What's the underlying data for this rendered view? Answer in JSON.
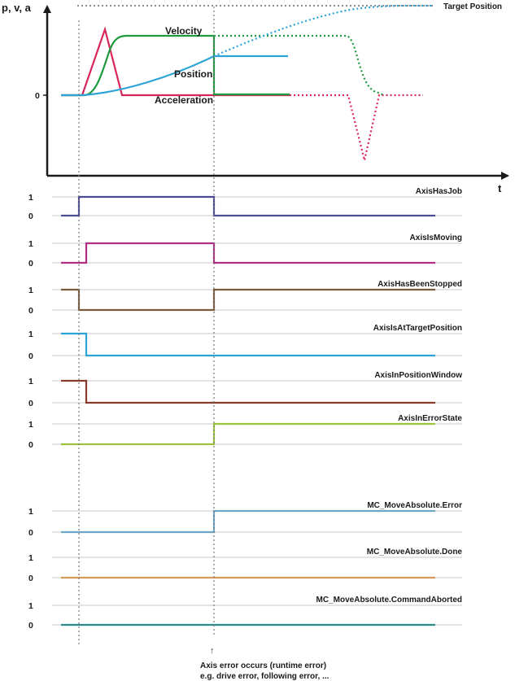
{
  "top_chart": {
    "y_axis_label": "p, v, a",
    "x_axis_label": "t",
    "zero_label": "0",
    "target_label": "Target Position",
    "curves": [
      {
        "name": "Velocity",
        "color": "#1e9a3e"
      },
      {
        "name": "Position",
        "color": "#2ba3d6"
      },
      {
        "name": "Acceleration",
        "color": "#d8265a"
      }
    ]
  },
  "signals": [
    {
      "name": "AxisHasJob",
      "color": "#4b4b96",
      "high": "1",
      "low": "0",
      "levels": [
        0,
        1,
        0
      ]
    },
    {
      "name": "AxisIsMoving",
      "color": "#b02f83",
      "high": "1",
      "low": "0",
      "levels": [
        0,
        1,
        0
      ]
    },
    {
      "name": "AxisHasBeenStopped",
      "color": "#7a5a3c",
      "high": "1",
      "low": "0",
      "levels": [
        1,
        0,
        1
      ]
    },
    {
      "name": "AxisIsAtTargetPosition",
      "color": "#2ba3d6",
      "high": "1",
      "low": "0",
      "levels": [
        1,
        0,
        0
      ]
    },
    {
      "name": "AxisInPositionWindow",
      "color": "#8a3a2a",
      "high": "1",
      "low": "0",
      "levels": [
        1,
        0,
        0
      ]
    },
    {
      "name": "AxisInErrorState",
      "color": "#9bc43a",
      "high": "1",
      "low": "0",
      "levels": [
        0,
        0,
        1
      ]
    },
    {
      "name": "MC_MoveAbsolute.Error",
      "color": "#6fa6c8",
      "high": "1",
      "low": "0",
      "levels": [
        0,
        0,
        1
      ]
    },
    {
      "name": "MC_MoveAbsolute.Done",
      "color": "#d69a5a",
      "high": "1",
      "low": "0",
      "levels": [
        0,
        0,
        0
      ]
    },
    {
      "name": "MC_MoveAbsolute.CommandAborted",
      "color": "#2d8a8a",
      "high": "1",
      "low": "0",
      "levels": [
        0,
        0,
        0
      ]
    }
  ],
  "annotation": {
    "arrow": "↑",
    "line1": "Axis error occurs (runtime error)",
    "line2": "e.g. drive error, following error, ..."
  }
}
